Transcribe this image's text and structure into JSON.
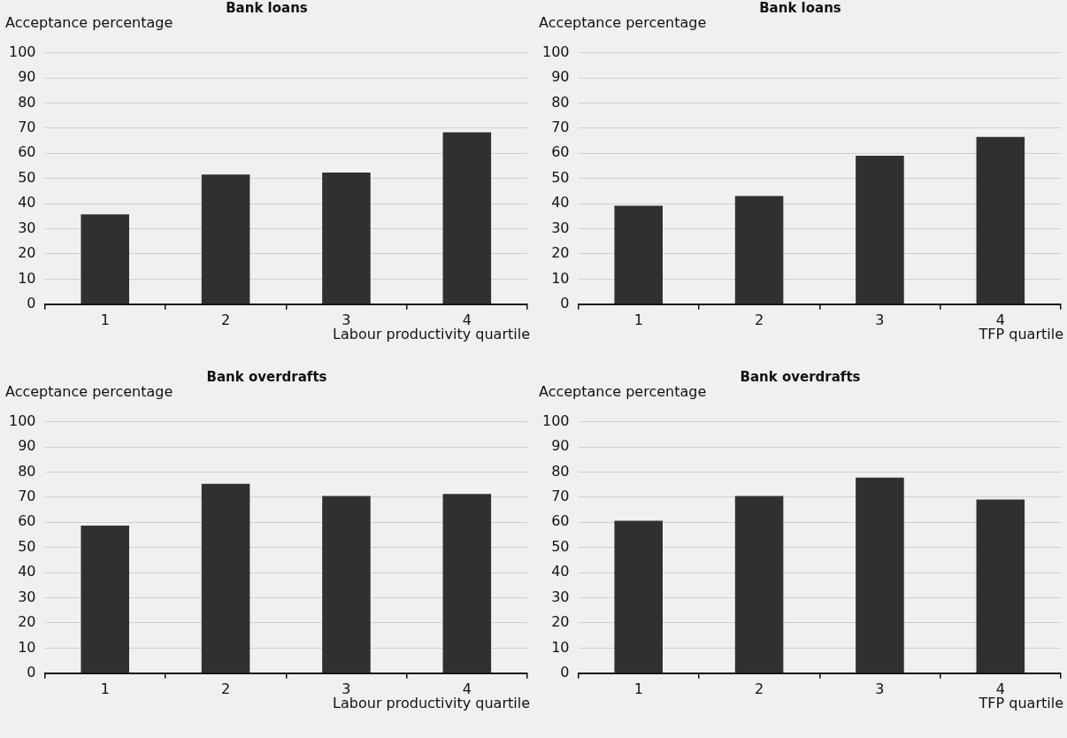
{
  "chart_data": [
    {
      "type": "bar",
      "title": "Bank loans",
      "ylabel": "Acceptance percentage",
      "xlabel": "Labour productivity quartile",
      "categories": [
        "1",
        "2",
        "3",
        "4"
      ],
      "values": [
        35.7,
        51.6,
        52.4,
        68.4
      ],
      "color": "#303030",
      "ylim": [
        0,
        100
      ],
      "yticks": [
        0,
        10,
        20,
        30,
        40,
        50,
        60,
        70,
        80,
        90,
        100
      ],
      "grid": "y"
    },
    {
      "type": "bar",
      "title": "Bank loans",
      "ylabel": "Acceptance percentage",
      "xlabel": "TFP quartile",
      "categories": [
        "1",
        "2",
        "3",
        "4"
      ],
      "values": [
        39.2,
        43.0,
        59.0,
        66.5
      ],
      "color": "#303030",
      "ylim": [
        0,
        100
      ],
      "yticks": [
        0,
        10,
        20,
        30,
        40,
        50,
        60,
        70,
        80,
        90,
        100
      ],
      "grid": "y"
    },
    {
      "type": "bar",
      "title": "Bank overdrafts",
      "ylabel": "Acceptance percentage",
      "xlabel": "Labour productivity quartile",
      "categories": [
        "1",
        "2",
        "3",
        "4"
      ],
      "values": [
        58.7,
        75.3,
        70.5,
        71.3
      ],
      "color": "#303030",
      "ylim": [
        0,
        100
      ],
      "yticks": [
        0,
        10,
        20,
        30,
        40,
        50,
        60,
        70,
        80,
        90,
        100
      ],
      "grid": "y"
    },
    {
      "type": "bar",
      "title": "Bank overdrafts",
      "ylabel": "Acceptance percentage",
      "xlabel": "TFP quartile",
      "categories": [
        "1",
        "2",
        "3",
        "4"
      ],
      "values": [
        60.6,
        70.5,
        77.8,
        69.1
      ],
      "color": "#303030",
      "ylim": [
        0,
        100
      ],
      "yticks": [
        0,
        10,
        20,
        30,
        40,
        50,
        60,
        70,
        80,
        90,
        100
      ],
      "grid": "y"
    }
  ]
}
